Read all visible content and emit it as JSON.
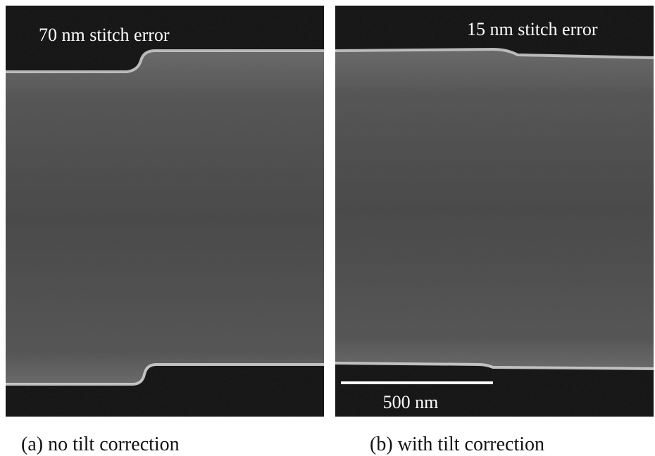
{
  "panels": [
    {
      "annotation": "70 nm stitch error",
      "caption": "(a) no tilt correction"
    },
    {
      "annotation": "15 nm stitch error",
      "caption": "(b) with tilt correction",
      "scale_bar_label": "500 nm"
    }
  ]
}
